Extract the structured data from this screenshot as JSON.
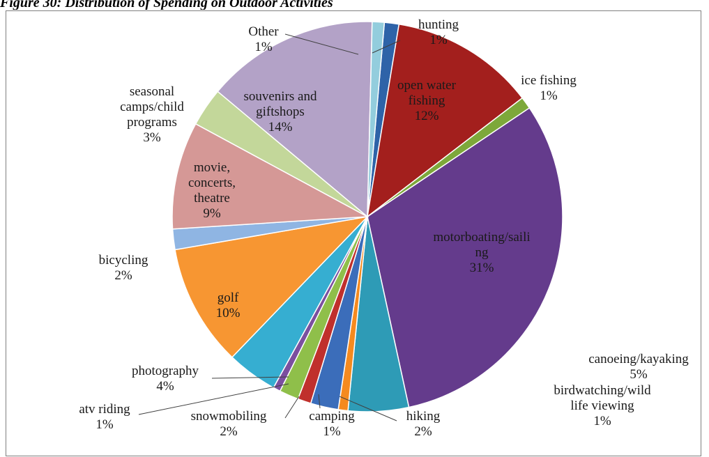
{
  "caption": "Figure 30: Distribution of Spending on Outdoor Activities",
  "chart_data": {
    "type": "pie",
    "title": "",
    "legend": "none",
    "slices": [
      {
        "label": [
          "hunting"
        ],
        "pct": "1%",
        "value": 1.2,
        "color": "#2e63a8"
      },
      {
        "label": [
          "open water",
          "fishing"
        ],
        "pct": "12%",
        "value": 12.0,
        "color": "#a31f1d"
      },
      {
        "label": [
          "ice fishing"
        ],
        "pct": "1%",
        "value": 1.0,
        "color": "#7da83a"
      },
      {
        "label": [
          "motorboating/saili",
          "ng"
        ],
        "pct": "31%",
        "value": 31.0,
        "color": "#643b8c"
      },
      {
        "label": [
          "canoeing/kayaking"
        ],
        "pct": "5%",
        "value": 5.0,
        "color": "#2e9bb6"
      },
      {
        "label": [
          "birdwatching/wild",
          "life viewing"
        ],
        "pct": "1%",
        "value": 0.8,
        "color": "#f58a1f"
      },
      {
        "label": [
          "hiking"
        ],
        "pct": "2%",
        "value": 2.3,
        "color": "#3b6dba"
      },
      {
        "label": [
          "camping"
        ],
        "pct": "1%",
        "value": 1.1,
        "color": "#c0302c"
      },
      {
        "label": [
          "snowmobiling"
        ],
        "pct": "2%",
        "value": 1.6,
        "color": "#8fbf4a"
      },
      {
        "label": [
          "atv riding"
        ],
        "pct": "1%",
        "value": 0.6,
        "color": "#7b4f9f"
      },
      {
        "label": [
          "photography"
        ],
        "pct": "4%",
        "value": 4.2,
        "color": "#36aed1"
      },
      {
        "label": [
          "golf"
        ],
        "pct": "10%",
        "value": 10.1,
        "color": "#f79632"
      },
      {
        "label": [
          "bicycling"
        ],
        "pct": "2%",
        "value": 1.7,
        "color": "#8fb5e3"
      },
      {
        "label": [
          "movie,",
          "concerts,",
          "theatre"
        ],
        "pct": "9%",
        "value": 8.9,
        "color": "#d59896"
      },
      {
        "label": [
          "seasonal",
          "camps/child",
          "programs"
        ],
        "pct": "3%",
        "value": 3.2,
        "color": "#c3d79a"
      },
      {
        "label": [
          "souvenirs and",
          "giftshops"
        ],
        "pct": "14%",
        "value": 14.3,
        "color": "#b3a2c7"
      },
      {
        "label": [
          "Other"
        ],
        "pct": "1%",
        "value": 1.0,
        "color": "#93cddd"
      }
    ]
  }
}
